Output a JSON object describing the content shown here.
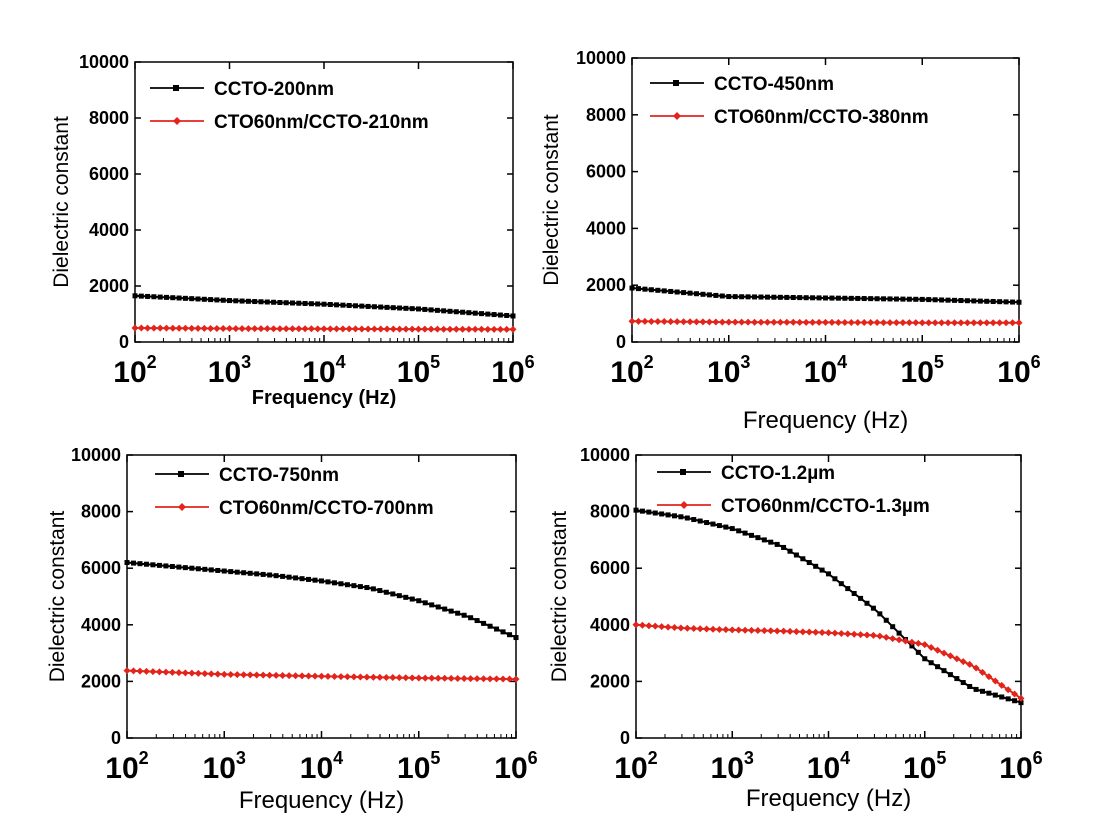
{
  "chart_data": [
    {
      "type": "line",
      "xlabel": "Frequency (Hz)",
      "ylabel": "Dielectric constant",
      "xscale": "log",
      "xlim": [
        100,
        1000000
      ],
      "ylim": [
        0,
        10000
      ],
      "x_ticks": [
        "2",
        "3",
        "4",
        "5",
        "6"
      ],
      "y_ticks": [
        "0",
        "2000",
        "4000",
        "6000",
        "8000",
        "10000"
      ],
      "legend": "top-left",
      "series": [
        {
          "name": "CCTO-200nm",
          "color": "#000000",
          "marker": "square",
          "x": [
            100,
            1000,
            10000,
            100000,
            1000000
          ],
          "values": [
            1650,
            1480,
            1350,
            1180,
            930
          ]
        },
        {
          "name": "CTO60nm/CCTO-210nm",
          "color": "#e3241b",
          "marker": "diamond",
          "x": [
            100,
            1000,
            10000,
            100000,
            1000000
          ],
          "values": [
            500,
            480,
            470,
            460,
            450
          ]
        }
      ]
    },
    {
      "type": "line",
      "xlabel": "Frequency (Hz)",
      "ylabel": "Dielectric constant",
      "xscale": "log",
      "xlim": [
        100,
        1000000
      ],
      "ylim": [
        0,
        10000
      ],
      "x_ticks": [
        "2",
        "3",
        "4",
        "5",
        "6"
      ],
      "y_ticks": [
        "0",
        "2000",
        "4000",
        "6000",
        "8000",
        "10000"
      ],
      "legend": "top-left",
      "series": [
        {
          "name": "CCTO-450nm",
          "color": "#000000",
          "marker": "square",
          "x": [
            100,
            1000,
            10000,
            100000,
            1000000
          ],
          "values": [
            1900,
            1600,
            1550,
            1500,
            1400
          ]
        },
        {
          "name": "CTO60nm/CCTO-380nm",
          "color": "#e3241b",
          "marker": "diamond",
          "x": [
            100,
            1000,
            10000,
            100000,
            1000000
          ],
          "values": [
            730,
            700,
            690,
            680,
            680
          ]
        }
      ]
    },
    {
      "type": "line",
      "xlabel": "Frequency (Hz)",
      "ylabel": "Dielectric constant",
      "xscale": "log",
      "xlim": [
        100,
        1000000
      ],
      "ylim": [
        0,
        10000
      ],
      "x_ticks": [
        "2",
        "3",
        "4",
        "5",
        "6"
      ],
      "y_ticks": [
        "0",
        "2000",
        "4000",
        "6000",
        "8000",
        "10000"
      ],
      "legend": "top-left",
      "series": [
        {
          "name": "CCTO-750nm",
          "color": "#000000",
          "marker": "square",
          "x": [
            100,
            316,
            1000,
            3162,
            10000,
            31623,
            100000,
            316228,
            1000000
          ],
          "values": [
            6200,
            6050,
            5900,
            5750,
            5550,
            5300,
            4850,
            4300,
            3550
          ]
        },
        {
          "name": "CTO60nm/CCTO-700nm",
          "color": "#e3241b",
          "marker": "diamond",
          "x": [
            100,
            1000,
            10000,
            100000,
            1000000
          ],
          "values": [
            2380,
            2250,
            2180,
            2120,
            2080
          ]
        }
      ]
    },
    {
      "type": "line",
      "xlabel": "Frequency (Hz)",
      "ylabel": "Dielectric constant",
      "xscale": "log",
      "xlim": [
        100,
        1000000
      ],
      "ylim": [
        0,
        10000
      ],
      "x_ticks": [
        "2",
        "3",
        "4",
        "5",
        "6"
      ],
      "y_ticks": [
        "0",
        "2000",
        "4000",
        "6000",
        "8000",
        "10000"
      ],
      "legend": "top-left",
      "series": [
        {
          "name": "CCTO-1.2µm",
          "color": "#000000",
          "marker": "square",
          "x": [
            100,
            316,
            1000,
            3162,
            10000,
            31623,
            100000,
            316228,
            1000000
          ],
          "values": [
            8050,
            7800,
            7400,
            6800,
            5800,
            4500,
            2800,
            1750,
            1250
          ]
        },
        {
          "name": "CTO60nm/CCTO-1.3µm",
          "color": "#e3241b",
          "marker": "diamond",
          "x": [
            100,
            316,
            1000,
            3162,
            10000,
            31623,
            100000,
            316228,
            1000000
          ],
          "values": [
            4000,
            3880,
            3820,
            3780,
            3720,
            3620,
            3300,
            2550,
            1400
          ]
        }
      ]
    }
  ]
}
